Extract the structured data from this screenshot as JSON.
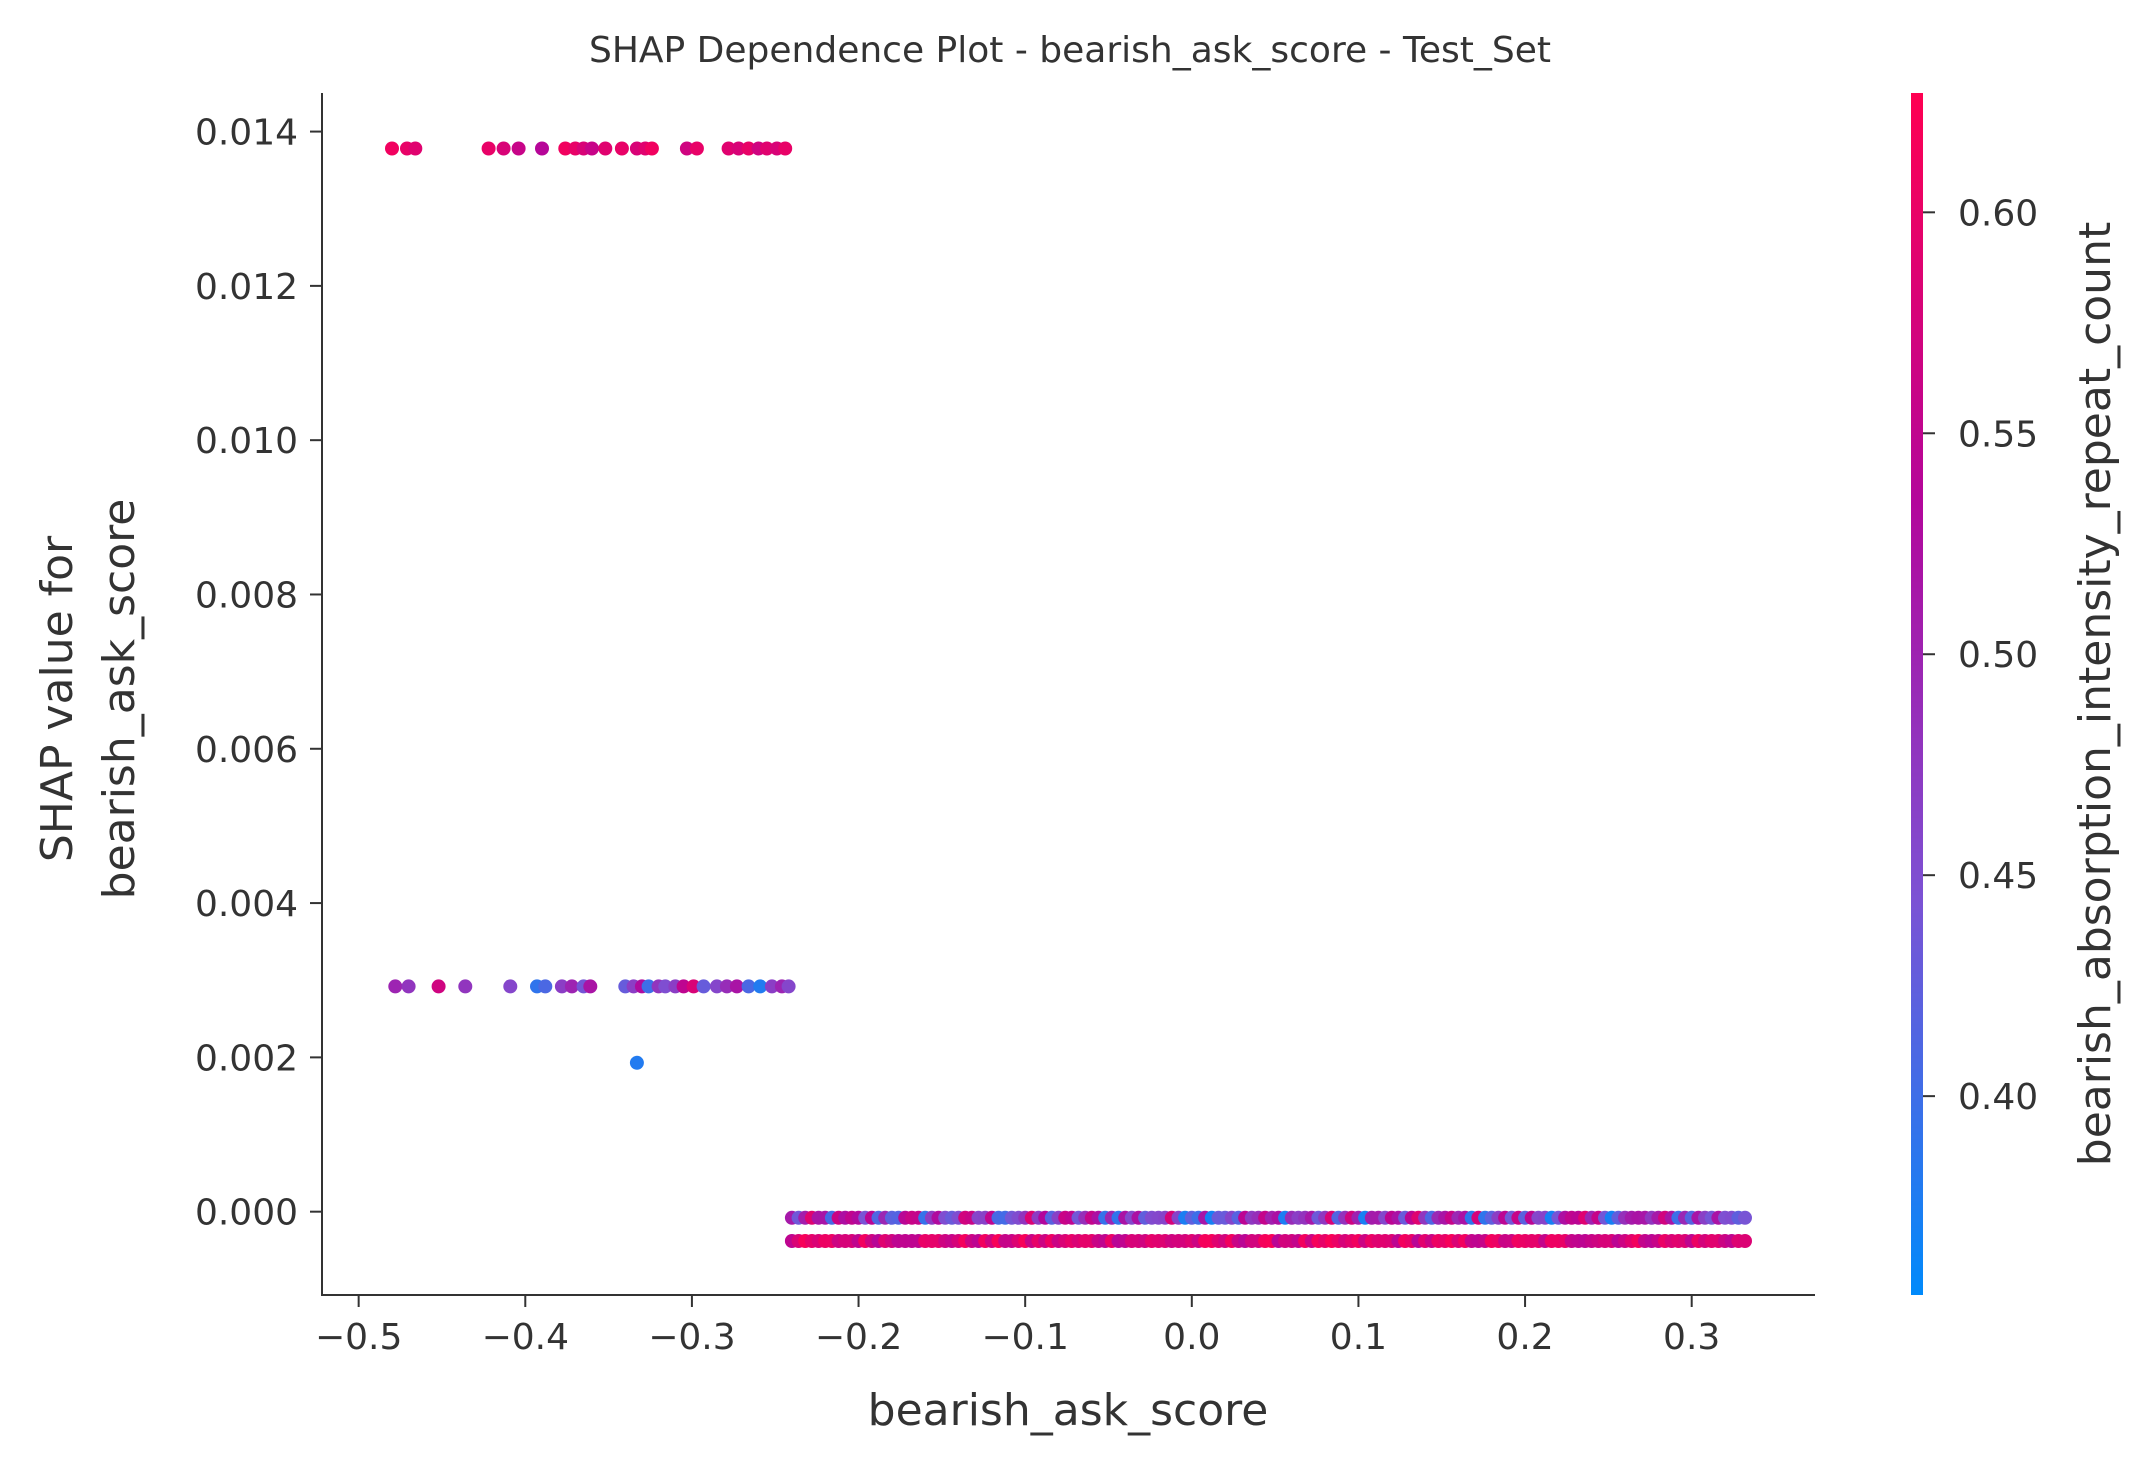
{
  "chart_data": {
    "type": "scatter",
    "title": "SHAP Dependence Plot - bearish_ask_score - Test_Set",
    "xlabel": "bearish_ask_score",
    "ylabel_lines": [
      "SHAP value for",
      "bearish_ask_score"
    ],
    "xlim": [
      -0.522,
      0.374
    ],
    "ylim": [
      -0.00108,
      0.0145
    ],
    "x_ticks": [
      -0.5,
      -0.4,
      -0.3,
      -0.2,
      -0.1,
      0.0,
      0.1,
      0.2,
      0.3
    ],
    "x_tick_labels": [
      "−0.5",
      "−0.4",
      "−0.3",
      "−0.2",
      "−0.1",
      "0.0",
      "0.1",
      "0.2",
      "0.3"
    ],
    "y_ticks": [
      0.0,
      0.002,
      0.004,
      0.006,
      0.008,
      0.01,
      0.012,
      0.014
    ],
    "y_tick_labels": [
      "0.000",
      "0.002",
      "0.004",
      "0.006",
      "0.008",
      "0.010",
      "0.012",
      "0.014"
    ],
    "grid": false,
    "colorbar": {
      "label": "bearish_absorption_intensity_repeat_count",
      "range": [
        0.355,
        0.627
      ],
      "ticks": [
        0.4,
        0.45,
        0.5,
        0.55,
        0.6
      ],
      "tick_labels": [
        "0.40",
        "0.45",
        "0.50",
        "0.55",
        "0.60"
      ],
      "colors": [
        "#008afb",
        "#7c52d4",
        "#b3069b",
        "#ff0051"
      ]
    },
    "series": [
      {
        "points": [
          [
            -0.48,
            0.01378,
            0.61
          ],
          [
            -0.471,
            0.01378,
            0.6
          ],
          [
            -0.466,
            0.01378,
            0.59
          ],
          [
            -0.422,
            0.01378,
            0.6
          ],
          [
            -0.413,
            0.01378,
            0.58
          ],
          [
            -0.404,
            0.01378,
            0.56
          ],
          [
            -0.39,
            0.01378,
            0.54
          ],
          [
            -0.376,
            0.01378,
            0.61
          ],
          [
            -0.37,
            0.01378,
            0.6
          ],
          [
            -0.365,
            0.01378,
            0.58
          ],
          [
            -0.36,
            0.01378,
            0.56
          ],
          [
            -0.352,
            0.01378,
            0.59
          ],
          [
            -0.342,
            0.01378,
            0.6
          ],
          [
            -0.333,
            0.01378,
            0.58
          ],
          [
            -0.328,
            0.01378,
            0.59
          ],
          [
            -0.324,
            0.01378,
            0.61
          ],
          [
            -0.303,
            0.01378,
            0.57
          ],
          [
            -0.297,
            0.01378,
            0.6
          ],
          [
            -0.278,
            0.01378,
            0.59
          ],
          [
            -0.272,
            0.01378,
            0.58
          ],
          [
            -0.266,
            0.01378,
            0.6
          ],
          [
            -0.26,
            0.01378,
            0.57
          ],
          [
            -0.255,
            0.01378,
            0.59
          ],
          [
            -0.249,
            0.01378,
            0.58
          ],
          [
            -0.244,
            0.01378,
            0.6
          ]
        ]
      },
      {
        "points": [
          [
            -0.478,
            0.00292,
            0.5
          ],
          [
            -0.47,
            0.00292,
            0.48
          ],
          [
            -0.452,
            0.00292,
            0.57
          ],
          [
            -0.436,
            0.00292,
            0.48
          ],
          [
            -0.409,
            0.00292,
            0.46
          ],
          [
            -0.393,
            0.00292,
            0.39
          ],
          [
            -0.388,
            0.00292,
            0.41
          ],
          [
            -0.378,
            0.00292,
            0.47
          ],
          [
            -0.372,
            0.00292,
            0.5
          ],
          [
            -0.365,
            0.00292,
            0.44
          ],
          [
            -0.361,
            0.00292,
            0.52
          ],
          [
            -0.34,
            0.00292,
            0.43
          ],
          [
            -0.335,
            0.00292,
            0.47
          ],
          [
            -0.33,
            0.00292,
            0.53
          ],
          [
            -0.326,
            0.00292,
            0.4
          ],
          [
            -0.32,
            0.00292,
            0.48
          ],
          [
            -0.316,
            0.00292,
            0.45
          ],
          [
            -0.31,
            0.00292,
            0.47
          ],
          [
            -0.305,
            0.00292,
            0.55
          ],
          [
            -0.299,
            0.00292,
            0.58
          ],
          [
            -0.293,
            0.00292,
            0.43
          ],
          [
            -0.285,
            0.00292,
            0.46
          ],
          [
            -0.279,
            0.00292,
            0.49
          ],
          [
            -0.273,
            0.00292,
            0.52
          ],
          [
            -0.266,
            0.00292,
            0.41
          ],
          [
            -0.259,
            0.00292,
            0.38
          ],
          [
            -0.252,
            0.00292,
            0.47
          ],
          [
            -0.246,
            0.00292,
            0.5
          ],
          [
            -0.242,
            0.00292,
            0.46
          ],
          [
            -0.333,
            0.00193,
            0.38
          ]
        ]
      },
      {
        "x_start": -0.24,
        "x_end": 0.333,
        "x_step": 0.004,
        "y": -8e-05
      },
      {
        "x_start": -0.24,
        "x_end": 0.333,
        "x_step": 0.004,
        "y": -0.00038
      }
    ]
  }
}
